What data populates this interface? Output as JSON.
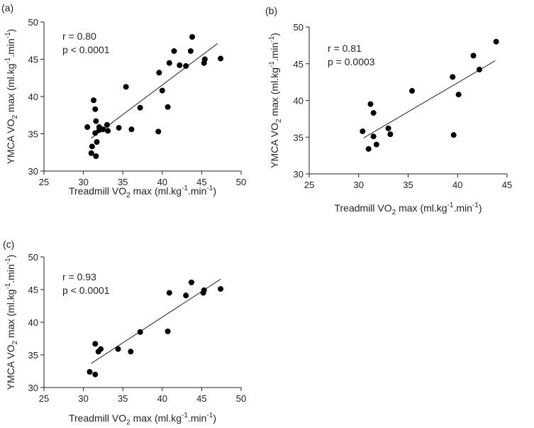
{
  "chart_data": [
    {
      "panel_label": "(a)",
      "type": "scatter",
      "xlabel": "Treadmill VO2 max  (ml.kg-1.min-1)",
      "ylabel": "YMCA VO2 max  (ml.kg-1.min-1)",
      "xlim": [
        25,
        50
      ],
      "ylim": [
        30,
        50
      ],
      "xticks": [
        25,
        30,
        35,
        40,
        45,
        50
      ],
      "yticks": [
        30,
        35,
        40,
        45,
        50
      ],
      "stats": [
        "r = 0.80",
        "p < 0.0001"
      ],
      "fit": {
        "x": [
          31.0,
          47.0
        ],
        "y": [
          34.4,
          47.1
        ]
      },
      "x": [
        30.5,
        31.0,
        31.1,
        31.3,
        31.5,
        31.6,
        31.5,
        31.6,
        31.7,
        32.0,
        32.0,
        32.5,
        33.0,
        33.1,
        34.5,
        35.4,
        36.1,
        37.2,
        39.5,
        39.6,
        40.0,
        40.7,
        40.9,
        41.5,
        42.2,
        43.0,
        43.6,
        43.8,
        45.3,
        45.4,
        47.4
      ],
      "y": [
        35.9,
        32.4,
        33.3,
        39.5,
        38.3,
        36.7,
        35.1,
        32.0,
        33.9,
        35.5,
        35.9,
        35.6,
        36.2,
        35.4,
        35.8,
        41.3,
        35.6,
        38.5,
        35.3,
        43.2,
        40.8,
        38.6,
        44.5,
        46.1,
        44.2,
        44.1,
        46.1,
        48.0,
        44.5,
        45.0,
        45.1
      ]
    },
    {
      "panel_label": "(b)",
      "type": "scatter",
      "xlabel": "Treadmill VO2 max  (ml.kg-1.min-1)",
      "ylabel": "YMCA VO2 max  (ml.kg-1.min-1)",
      "xlim": [
        25,
        45
      ],
      "ylim": [
        30,
        50
      ],
      "xticks": [
        25,
        30,
        35,
        40,
        45
      ],
      "yticks": [
        30,
        35,
        40,
        45,
        50
      ],
      "stats": [
        "r = 0.81",
        "p = 0.0003"
      ],
      "fit": {
        "x": [
          30.5,
          43.8
        ],
        "y": [
          34.9,
          45.4
        ]
      },
      "x": [
        30.4,
        31.0,
        31.2,
        31.5,
        31.5,
        31.8,
        33.0,
        33.2,
        35.4,
        39.5,
        39.6,
        40.1,
        41.6,
        42.2,
        43.9
      ],
      "y": [
        35.8,
        33.4,
        39.5,
        38.3,
        35.1,
        34.0,
        36.2,
        35.4,
        41.3,
        43.2,
        35.3,
        40.8,
        46.1,
        44.2,
        48.0
      ]
    },
    {
      "panel_label": "(c)",
      "type": "scatter",
      "xlabel": "Treadmill VO2 max  (ml.kg-1.min-1)",
      "ylabel": "YMCA VO2 max  (ml.kg-1.min-1)",
      "xlim": [
        25,
        50
      ],
      "ylim": [
        30,
        50
      ],
      "xticks": [
        25,
        30,
        35,
        40,
        45,
        50
      ],
      "yticks": [
        30,
        35,
        40,
        45,
        50
      ],
      "stats": [
        "r = 0.93",
        "p < 0.0001"
      ],
      "fit": {
        "x": [
          31.0,
          47.4
        ],
        "y": [
          33.7,
          46.6
        ]
      },
      "x": [
        30.8,
        31.5,
        31.5,
        31.9,
        32.2,
        34.4,
        36.0,
        37.2,
        40.7,
        40.9,
        43.0,
        43.7,
        45.2,
        45.3,
        47.4
      ],
      "y": [
        32.4,
        36.7,
        32.0,
        35.5,
        35.9,
        35.9,
        35.5,
        38.5,
        38.6,
        44.5,
        44.1,
        46.1,
        44.5,
        44.9,
        45.1
      ]
    }
  ]
}
